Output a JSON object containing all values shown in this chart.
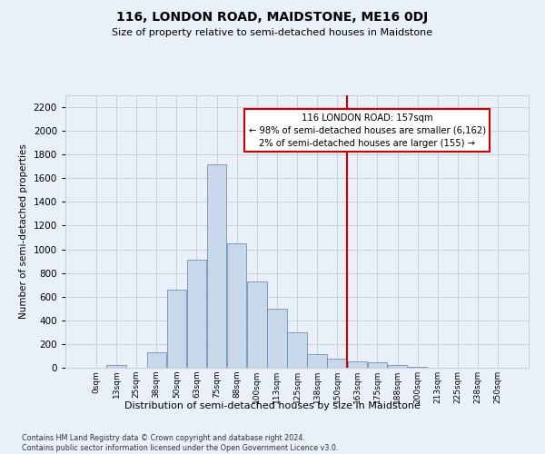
{
  "title": "116, LONDON ROAD, MAIDSTONE, ME16 0DJ",
  "subtitle": "Size of property relative to semi-detached houses in Maidstone",
  "xlabel": "Distribution of semi-detached houses by size in Maidstone",
  "ylabel": "Number of semi-detached properties",
  "bar_labels": [
    "0sqm",
    "13sqm",
    "25sqm",
    "38sqm",
    "50sqm",
    "63sqm",
    "75sqm",
    "88sqm",
    "100sqm",
    "113sqm",
    "125sqm",
    "138sqm",
    "150sqm",
    "163sqm",
    "175sqm",
    "188sqm",
    "200sqm",
    "213sqm",
    "225sqm",
    "238sqm",
    "250sqm"
  ],
  "bar_values": [
    0,
    25,
    0,
    130,
    660,
    910,
    1720,
    1050,
    730,
    500,
    300,
    115,
    75,
    55,
    45,
    20,
    10,
    0,
    0,
    0,
    0
  ],
  "bar_color": "#c8d8ea",
  "bar_edge_color": "#7090b8",
  "vline_x": 12.5,
  "annotation_text": "116 LONDON ROAD: 157sqm\n← 98% of semi-detached houses are smaller (6,162)\n2% of semi-detached houses are larger (155) →",
  "ylim": [
    0,
    2300
  ],
  "yticks": [
    0,
    200,
    400,
    600,
    800,
    1000,
    1200,
    1400,
    1600,
    1800,
    2000,
    2200
  ],
  "footnote": "Contains HM Land Registry data © Crown copyright and database right 2024.\nContains public sector information licensed under the Open Government Licence v3.0.",
  "bg_color": "#eaf0f8",
  "vline_color": "#cc0000",
  "box_edge_color": "#cc0000",
  "grid_color": "#c8d0dc"
}
